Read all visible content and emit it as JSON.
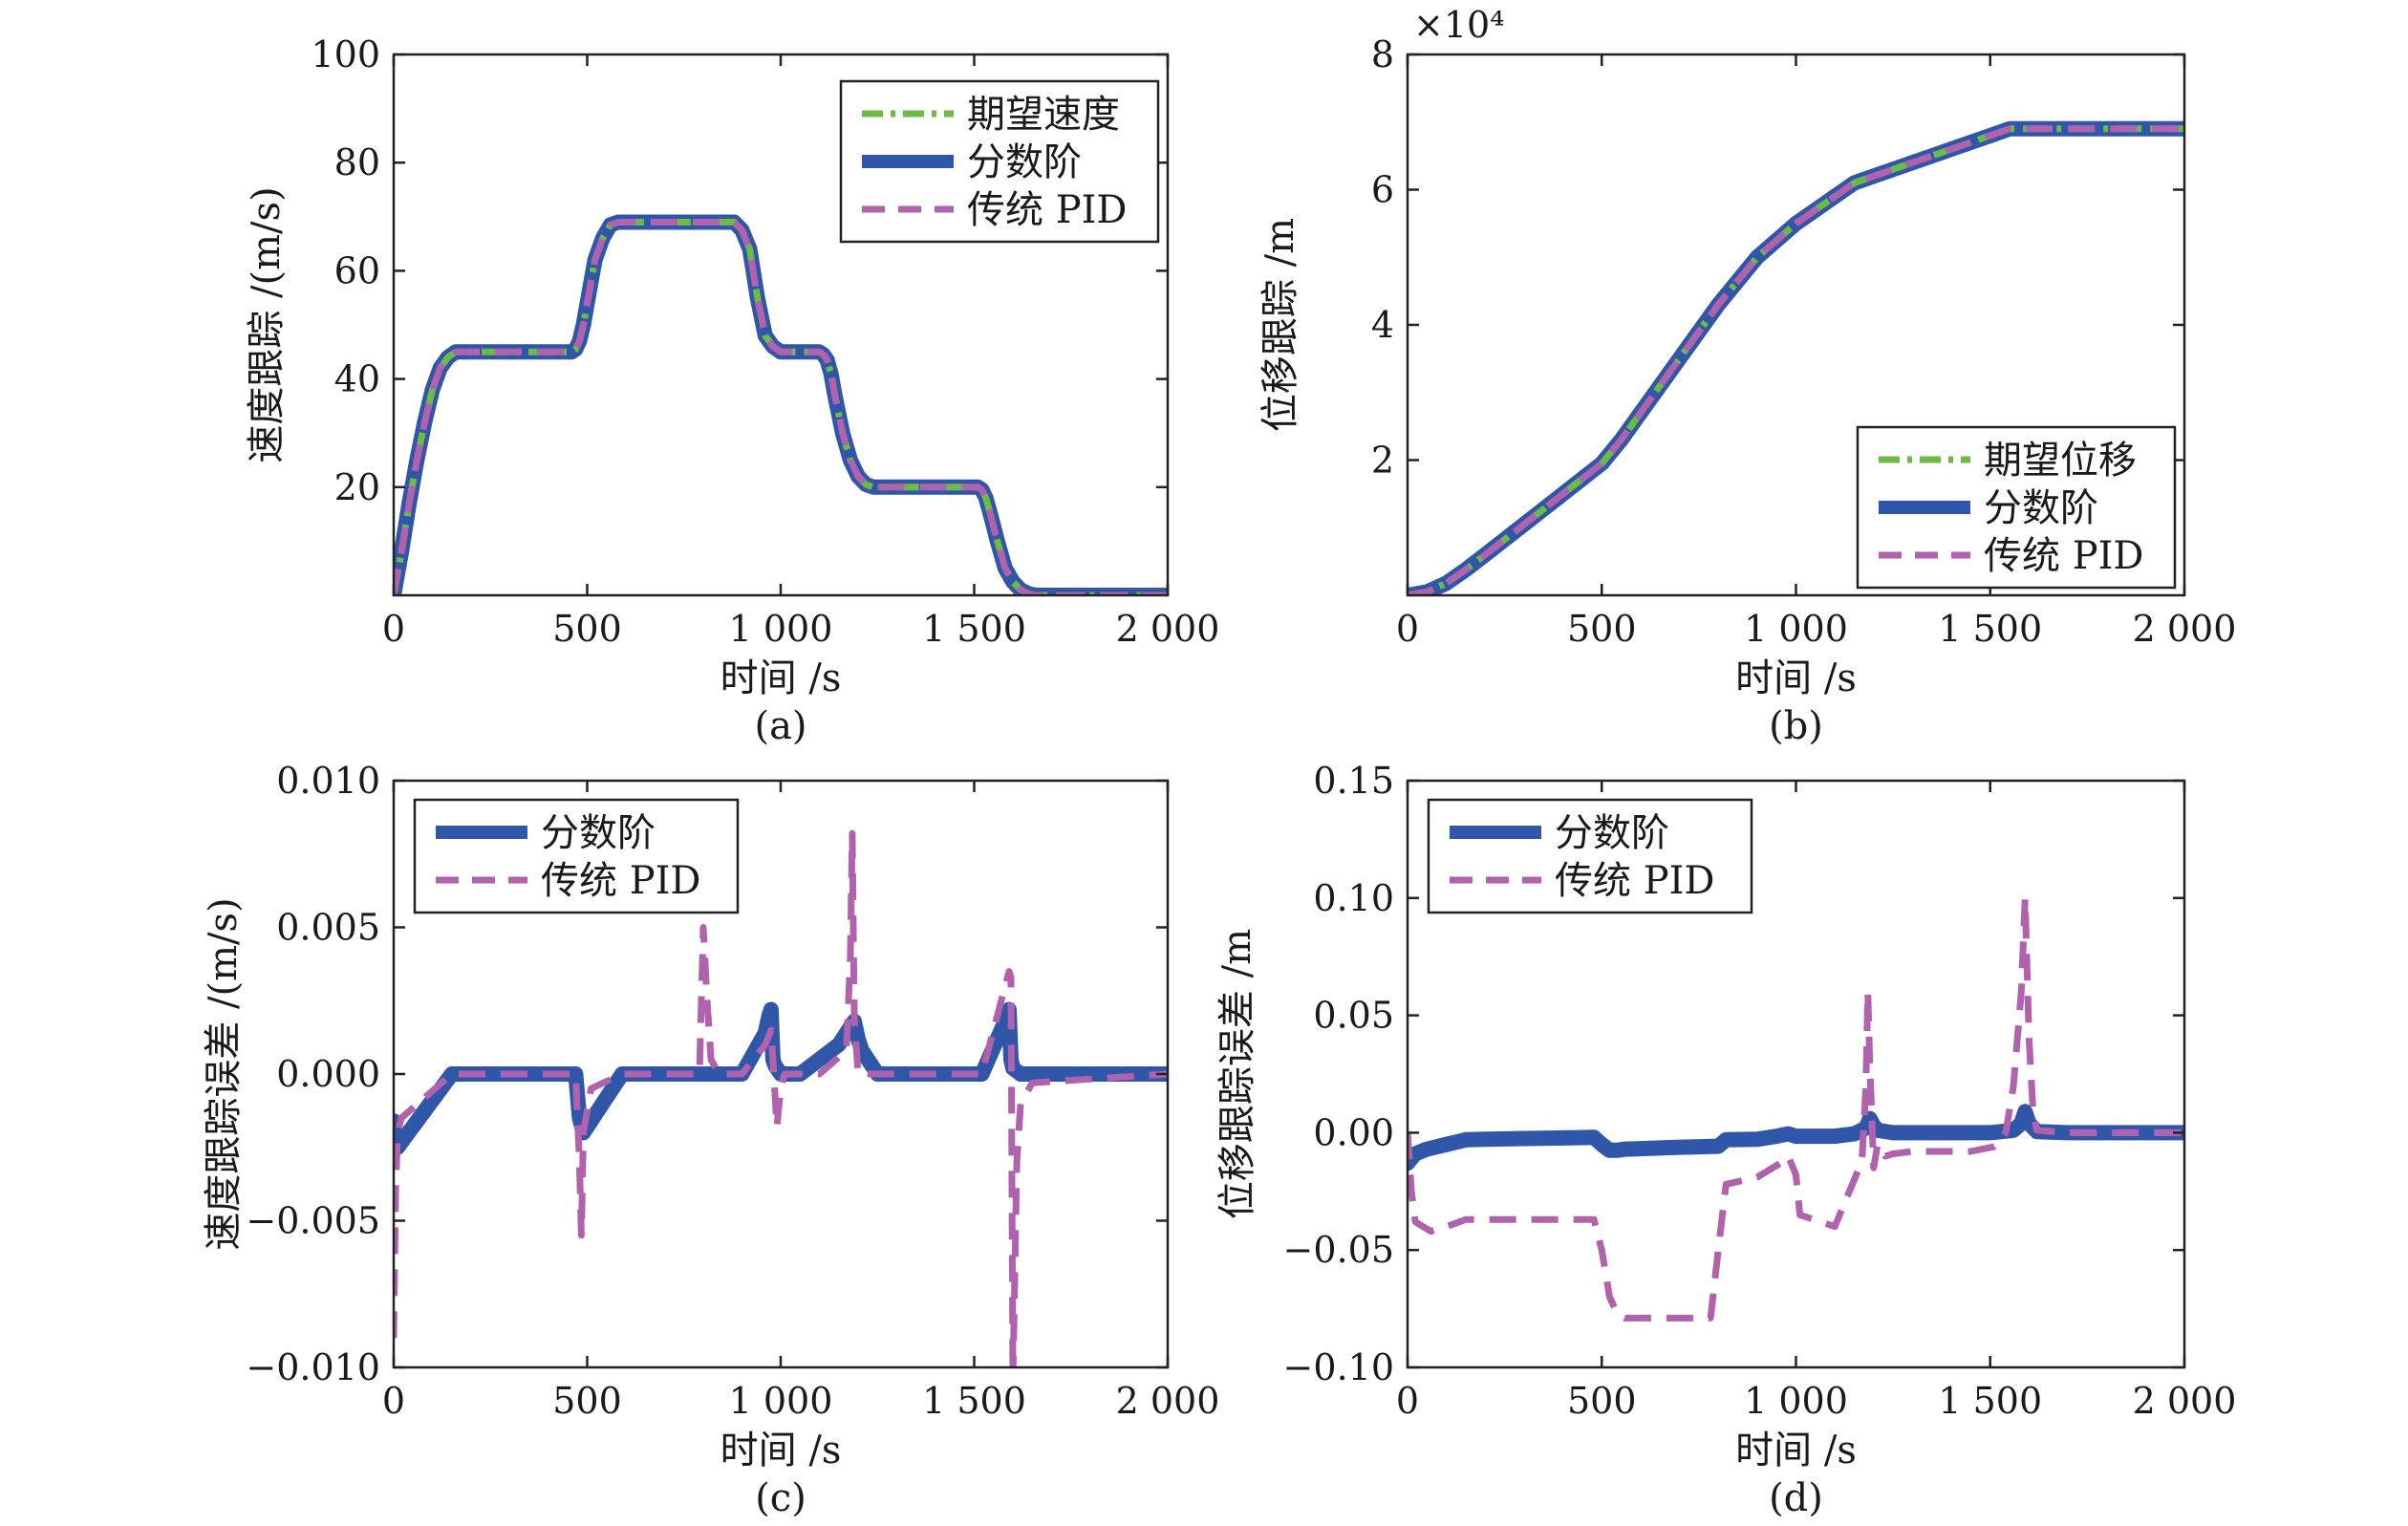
{
  "colors": {
    "desired": "#6dbb45",
    "fractional": "#2f56a8",
    "pid": "#b062ac"
  },
  "chart_data": [
    {
      "type": "line",
      "caption": "(a)",
      "xlabel": "时间 /s",
      "ylabel": "速度跟踪 /(m/s)",
      "xlim": [
        0,
        2000
      ],
      "ylim": [
        0,
        100
      ],
      "xticks": [
        0,
        500,
        1000,
        1500,
        2000
      ],
      "xtick_labels": [
        "0",
        "500",
        "1 000",
        "1 500",
        "2 000"
      ],
      "yticks": [
        20,
        40,
        60,
        80,
        100
      ],
      "ytick_labels": [
        "20",
        "40",
        "60",
        "80",
        "100"
      ],
      "multiplier": "",
      "legend": {
        "position": "top-right",
        "entries": [
          "期望速度",
          "分数阶",
          "传统 PID"
        ]
      },
      "series": [
        {
          "name": "期望速度",
          "style": "dashdot",
          "x": [
            0,
            20,
            40,
            60,
            80,
            100,
            120,
            140,
            160,
            180,
            460,
            470,
            480,
            490,
            500,
            520,
            540,
            560,
            580,
            600,
            880,
            900,
            920,
            940,
            960,
            980,
            1000,
            1100,
            1110,
            1120,
            1130,
            1140,
            1160,
            1180,
            1200,
            1220,
            1240,
            1260,
            1500,
            1510,
            1520,
            1530,
            1540,
            1560,
            1580,
            1600,
            1620,
            1640,
            1660,
            2000
          ],
          "y": [
            0,
            8,
            17,
            25,
            32,
            38,
            42,
            44,
            45,
            45,
            45,
            45.5,
            47,
            50,
            54,
            62,
            66,
            68.5,
            69,
            69,
            69,
            67.5,
            64,
            55,
            48,
            46,
            45,
            45,
            44.5,
            43.5,
            41,
            37,
            30,
            25,
            22,
            20.5,
            20,
            20,
            20,
            20,
            19.5,
            18,
            15.5,
            10,
            5,
            2.5,
            1,
            0.3,
            0,
            0
          ]
        },
        {
          "name": "分数阶",
          "style": "solid",
          "x": [
            0,
            20,
            40,
            60,
            80,
            100,
            120,
            140,
            160,
            180,
            460,
            470,
            480,
            490,
            500,
            520,
            540,
            560,
            580,
            600,
            880,
            900,
            920,
            940,
            960,
            980,
            1000,
            1100,
            1110,
            1120,
            1130,
            1140,
            1160,
            1180,
            1200,
            1220,
            1240,
            1260,
            1500,
            1510,
            1520,
            1530,
            1540,
            1560,
            1580,
            1600,
            1620,
            1640,
            1660,
            2000
          ],
          "y": [
            0,
            8,
            17,
            25,
            32,
            38,
            42,
            44,
            45,
            45,
            45,
            45.5,
            47,
            50,
            54,
            62,
            66,
            68.5,
            69,
            69,
            69,
            67.5,
            64,
            55,
            48,
            46,
            45,
            45,
            44.5,
            43.5,
            41,
            37,
            30,
            25,
            22,
            20.5,
            20,
            20,
            20,
            20,
            19.5,
            18,
            15.5,
            10,
            5,
            2.5,
            1,
            0.3,
            0,
            0
          ]
        },
        {
          "name": "传统 PID",
          "style": "dashed",
          "x": [
            0,
            20,
            40,
            60,
            80,
            100,
            120,
            140,
            160,
            180,
            460,
            470,
            480,
            490,
            500,
            520,
            540,
            560,
            580,
            600,
            880,
            900,
            920,
            940,
            960,
            980,
            1000,
            1100,
            1110,
            1120,
            1130,
            1140,
            1160,
            1180,
            1200,
            1220,
            1240,
            1260,
            1500,
            1510,
            1520,
            1530,
            1540,
            1560,
            1580,
            1600,
            1620,
            1640,
            1660,
            2000
          ],
          "y": [
            0,
            8,
            17,
            25,
            32,
            38,
            42,
            44,
            45,
            45,
            45,
            45.5,
            47,
            50,
            54,
            62,
            66,
            68.5,
            69,
            69,
            69,
            67.5,
            64,
            55,
            48,
            46,
            45,
            45,
            44.5,
            43.5,
            41,
            37,
            30,
            25,
            22,
            20.5,
            20,
            20,
            20,
            20,
            19.5,
            18,
            15.5,
            10,
            5,
            2.5,
            1,
            0.3,
            0,
            0
          ]
        }
      ]
    },
    {
      "type": "line",
      "caption": "(b)",
      "xlabel": "时间 /s",
      "ylabel": "位移跟踪 /m",
      "xlim": [
        0,
        2000
      ],
      "ylim": [
        0,
        8
      ],
      "xticks": [
        0,
        500,
        1000,
        1500,
        2000
      ],
      "xtick_labels": [
        "0",
        "500",
        "1 000",
        "1 500",
        "2 000"
      ],
      "yticks": [
        2,
        4,
        6,
        8
      ],
      "ytick_labels": [
        "2",
        "4",
        "6",
        "8"
      ],
      "multiplier": "×10⁴",
      "legend": {
        "position": "bottom-right",
        "entries": [
          "期望位移",
          "分数阶",
          "传统 PID"
        ]
      },
      "series": [
        {
          "name": "期望位移",
          "style": "dashdot",
          "x": [
            0,
            50,
            100,
            150,
            200,
            300,
            400,
            500,
            550,
            600,
            700,
            800,
            900,
            1000,
            1100,
            1150,
            1200,
            1300,
            1400,
            1500,
            1550,
            1600,
            2000
          ],
          "y": [
            0,
            0.05,
            0.18,
            0.38,
            0.6,
            1.05,
            1.5,
            1.95,
            2.3,
            2.7,
            3.5,
            4.3,
            5.0,
            5.5,
            5.9,
            6.1,
            6.2,
            6.4,
            6.6,
            6.8,
            6.9,
            6.9,
            6.9
          ]
        },
        {
          "name": "分数阶",
          "style": "solid",
          "x": [
            0,
            50,
            100,
            150,
            200,
            300,
            400,
            500,
            550,
            600,
            700,
            800,
            900,
            1000,
            1100,
            1150,
            1200,
            1300,
            1400,
            1500,
            1550,
            1600,
            2000
          ],
          "y": [
            0,
            0.05,
            0.18,
            0.38,
            0.6,
            1.05,
            1.5,
            1.95,
            2.3,
            2.7,
            3.5,
            4.3,
            5.0,
            5.5,
            5.9,
            6.1,
            6.2,
            6.4,
            6.6,
            6.8,
            6.9,
            6.9,
            6.9
          ]
        },
        {
          "name": "传统 PID",
          "style": "dashed",
          "x": [
            0,
            50,
            100,
            150,
            200,
            300,
            400,
            500,
            550,
            600,
            700,
            800,
            900,
            1000,
            1100,
            1150,
            1200,
            1300,
            1400,
            1500,
            1550,
            1600,
            2000
          ],
          "y": [
            0,
            0.05,
            0.18,
            0.38,
            0.6,
            1.05,
            1.5,
            1.95,
            2.3,
            2.7,
            3.5,
            4.3,
            5.0,
            5.5,
            5.9,
            6.1,
            6.2,
            6.4,
            6.6,
            6.8,
            6.9,
            6.9,
            6.9
          ]
        }
      ]
    },
    {
      "type": "line",
      "caption": "(c)",
      "xlabel": "时间 /s",
      "ylabel": "速度跟踪误差 /(m/s)",
      "xlim": [
        0,
        2000
      ],
      "ylim": [
        -0.01,
        0.01
      ],
      "xticks": [
        0,
        500,
        1000,
        1500,
        2000
      ],
      "xtick_labels": [
        "0",
        "500",
        "1 000",
        "1 500",
        "2 000"
      ],
      "yticks": [
        -0.01,
        -0.005,
        0,
        0.005,
        0.01
      ],
      "ytick_labels": [
        "−0.010",
        "−0.005",
        "0.000",
        "0.005",
        "0.010"
      ],
      "multiplier": "",
      "legend": {
        "position": "top-left",
        "entries": [
          "分数阶",
          "传统 PID"
        ]
      },
      "series": [
        {
          "name": "分数阶",
          "style": "solid",
          "x": [
            0,
            10,
            150,
            470,
            480,
            490,
            590,
            900,
            960,
            970,
            975,
            980,
            985,
            1000,
            1050,
            1150,
            1190,
            1200,
            1210,
            1250,
            1520,
            1580,
            1590,
            1595,
            1600,
            1620,
            1650,
            2000
          ],
          "y": [
            -0.0016,
            -0.0025,
            0,
            0,
            -0.0015,
            -0.002,
            0,
            0,
            0.0014,
            0.002,
            0.0022,
            0.0005,
            0.0003,
            0,
            0,
            0.001,
            0.0018,
            0.0012,
            0.0008,
            0,
            0,
            0.0018,
            0.0022,
            0.0005,
            0.0002,
            0,
            0,
            0
          ]
        },
        {
          "name": "传统 PID",
          "style": "dashed",
          "x": [
            0,
            5,
            10,
            20,
            150,
            470,
            480,
            485,
            490,
            510,
            590,
            790,
            800,
            810,
            820,
            840,
            900,
            960,
            975,
            980,
            990,
            1000,
            1010,
            1100,
            1170,
            1180,
            1185,
            1190,
            1200,
            1210,
            1240,
            1260,
            1520,
            1580,
            1590,
            1595,
            1600,
            1610,
            1620,
            1650,
            2000
          ],
          "y": [
            -0.009,
            -0.004,
            -0.002,
            -0.0015,
            0,
            0,
            -0.003,
            -0.0055,
            -0.002,
            -0.0005,
            0,
            0,
            0.005,
            0.0025,
            0.0005,
            0,
            0,
            0.001,
            0.0015,
            0.0005,
            -0.0018,
            -0.0005,
            0,
            0,
            0.0008,
            0.004,
            0.0082,
            0.002,
            0,
            0,
            0,
            0,
            0,
            0.003,
            0.0035,
            0.0033,
            -0.0105,
            -0.003,
            -0.001,
            -0.0003,
            0
          ]
        }
      ]
    },
    {
      "type": "line",
      "caption": "(d)",
      "xlabel": "时间 /s",
      "ylabel": "位移跟踪误差 /m",
      "xlim": [
        0,
        2000
      ],
      "ylim": [
        -0.1,
        0.15
      ],
      "xticks": [
        0,
        500,
        1000,
        1500,
        2000
      ],
      "xtick_labels": [
        "0",
        "500",
        "1 000",
        "1 500",
        "2 000"
      ],
      "yticks": [
        -0.1,
        -0.05,
        0,
        0.05,
        0.1,
        0.15
      ],
      "ytick_labels": [
        "−0.10",
        "−0.05",
        "0.00",
        "0.05",
        "0.10",
        "0.15"
      ],
      "multiplier": "",
      "legend": {
        "position": "top-left",
        "entries": [
          "分数阶",
          "传统 PID"
        ]
      },
      "series": [
        {
          "name": "分数阶",
          "style": "solid",
          "x": [
            0,
            20,
            50,
            100,
            150,
            200,
            300,
            480,
            500,
            520,
            540,
            560,
            600,
            700,
            800,
            820,
            900,
            950,
            980,
            1000,
            1050,
            1100,
            1150,
            1180,
            1190,
            1200,
            1210,
            1250,
            1500,
            1560,
            1580,
            1590,
            1600,
            1620,
            1700,
            2000
          ],
          "y": [
            -0.013,
            -0.009,
            -0.007,
            -0.005,
            -0.003,
            -0.0028,
            -0.0025,
            -0.002,
            -0.005,
            -0.0075,
            -0.0075,
            -0.007,
            -0.0068,
            -0.0062,
            -0.0058,
            -0.003,
            -0.0028,
            -0.0015,
            -0.0005,
            -0.0015,
            -0.0015,
            -0.0015,
            -0.0005,
            0.002,
            0.006,
            0.003,
            0.001,
            0,
            0,
            0.001,
            0.004,
            0.009,
            0.004,
            0.0005,
            0,
            0
          ]
        },
        {
          "name": "传统 PID",
          "style": "dashed",
          "x": [
            0,
            10,
            20,
            60,
            100,
            150,
            200,
            480,
            500,
            520,
            540,
            560,
            600,
            700,
            780,
            800,
            820,
            900,
            960,
            980,
            1000,
            1010,
            1100,
            1150,
            1170,
            1180,
            1185,
            1190,
            1200,
            1210,
            1230,
            1250,
            1300,
            1450,
            1510,
            1540,
            1560,
            1580,
            1590,
            1600,
            1610,
            1620,
            1700,
            2000
          ],
          "y": [
            0,
            -0.025,
            -0.038,
            -0.042,
            -0.04,
            -0.037,
            -0.037,
            -0.037,
            -0.05,
            -0.07,
            -0.077,
            -0.079,
            -0.079,
            -0.079,
            -0.079,
            -0.05,
            -0.022,
            -0.019,
            -0.013,
            -0.01,
            -0.018,
            -0.035,
            -0.04,
            -0.02,
            -0.012,
            0.02,
            0.06,
            0.03,
            -0.015,
            -0.005,
            -0.01,
            -0.009,
            -0.008,
            -0.008,
            -0.006,
            0.0,
            0.02,
            0.06,
            0.1,
            0.04,
            0.01,
            0.001,
            0,
            0
          ]
        }
      ]
    }
  ]
}
